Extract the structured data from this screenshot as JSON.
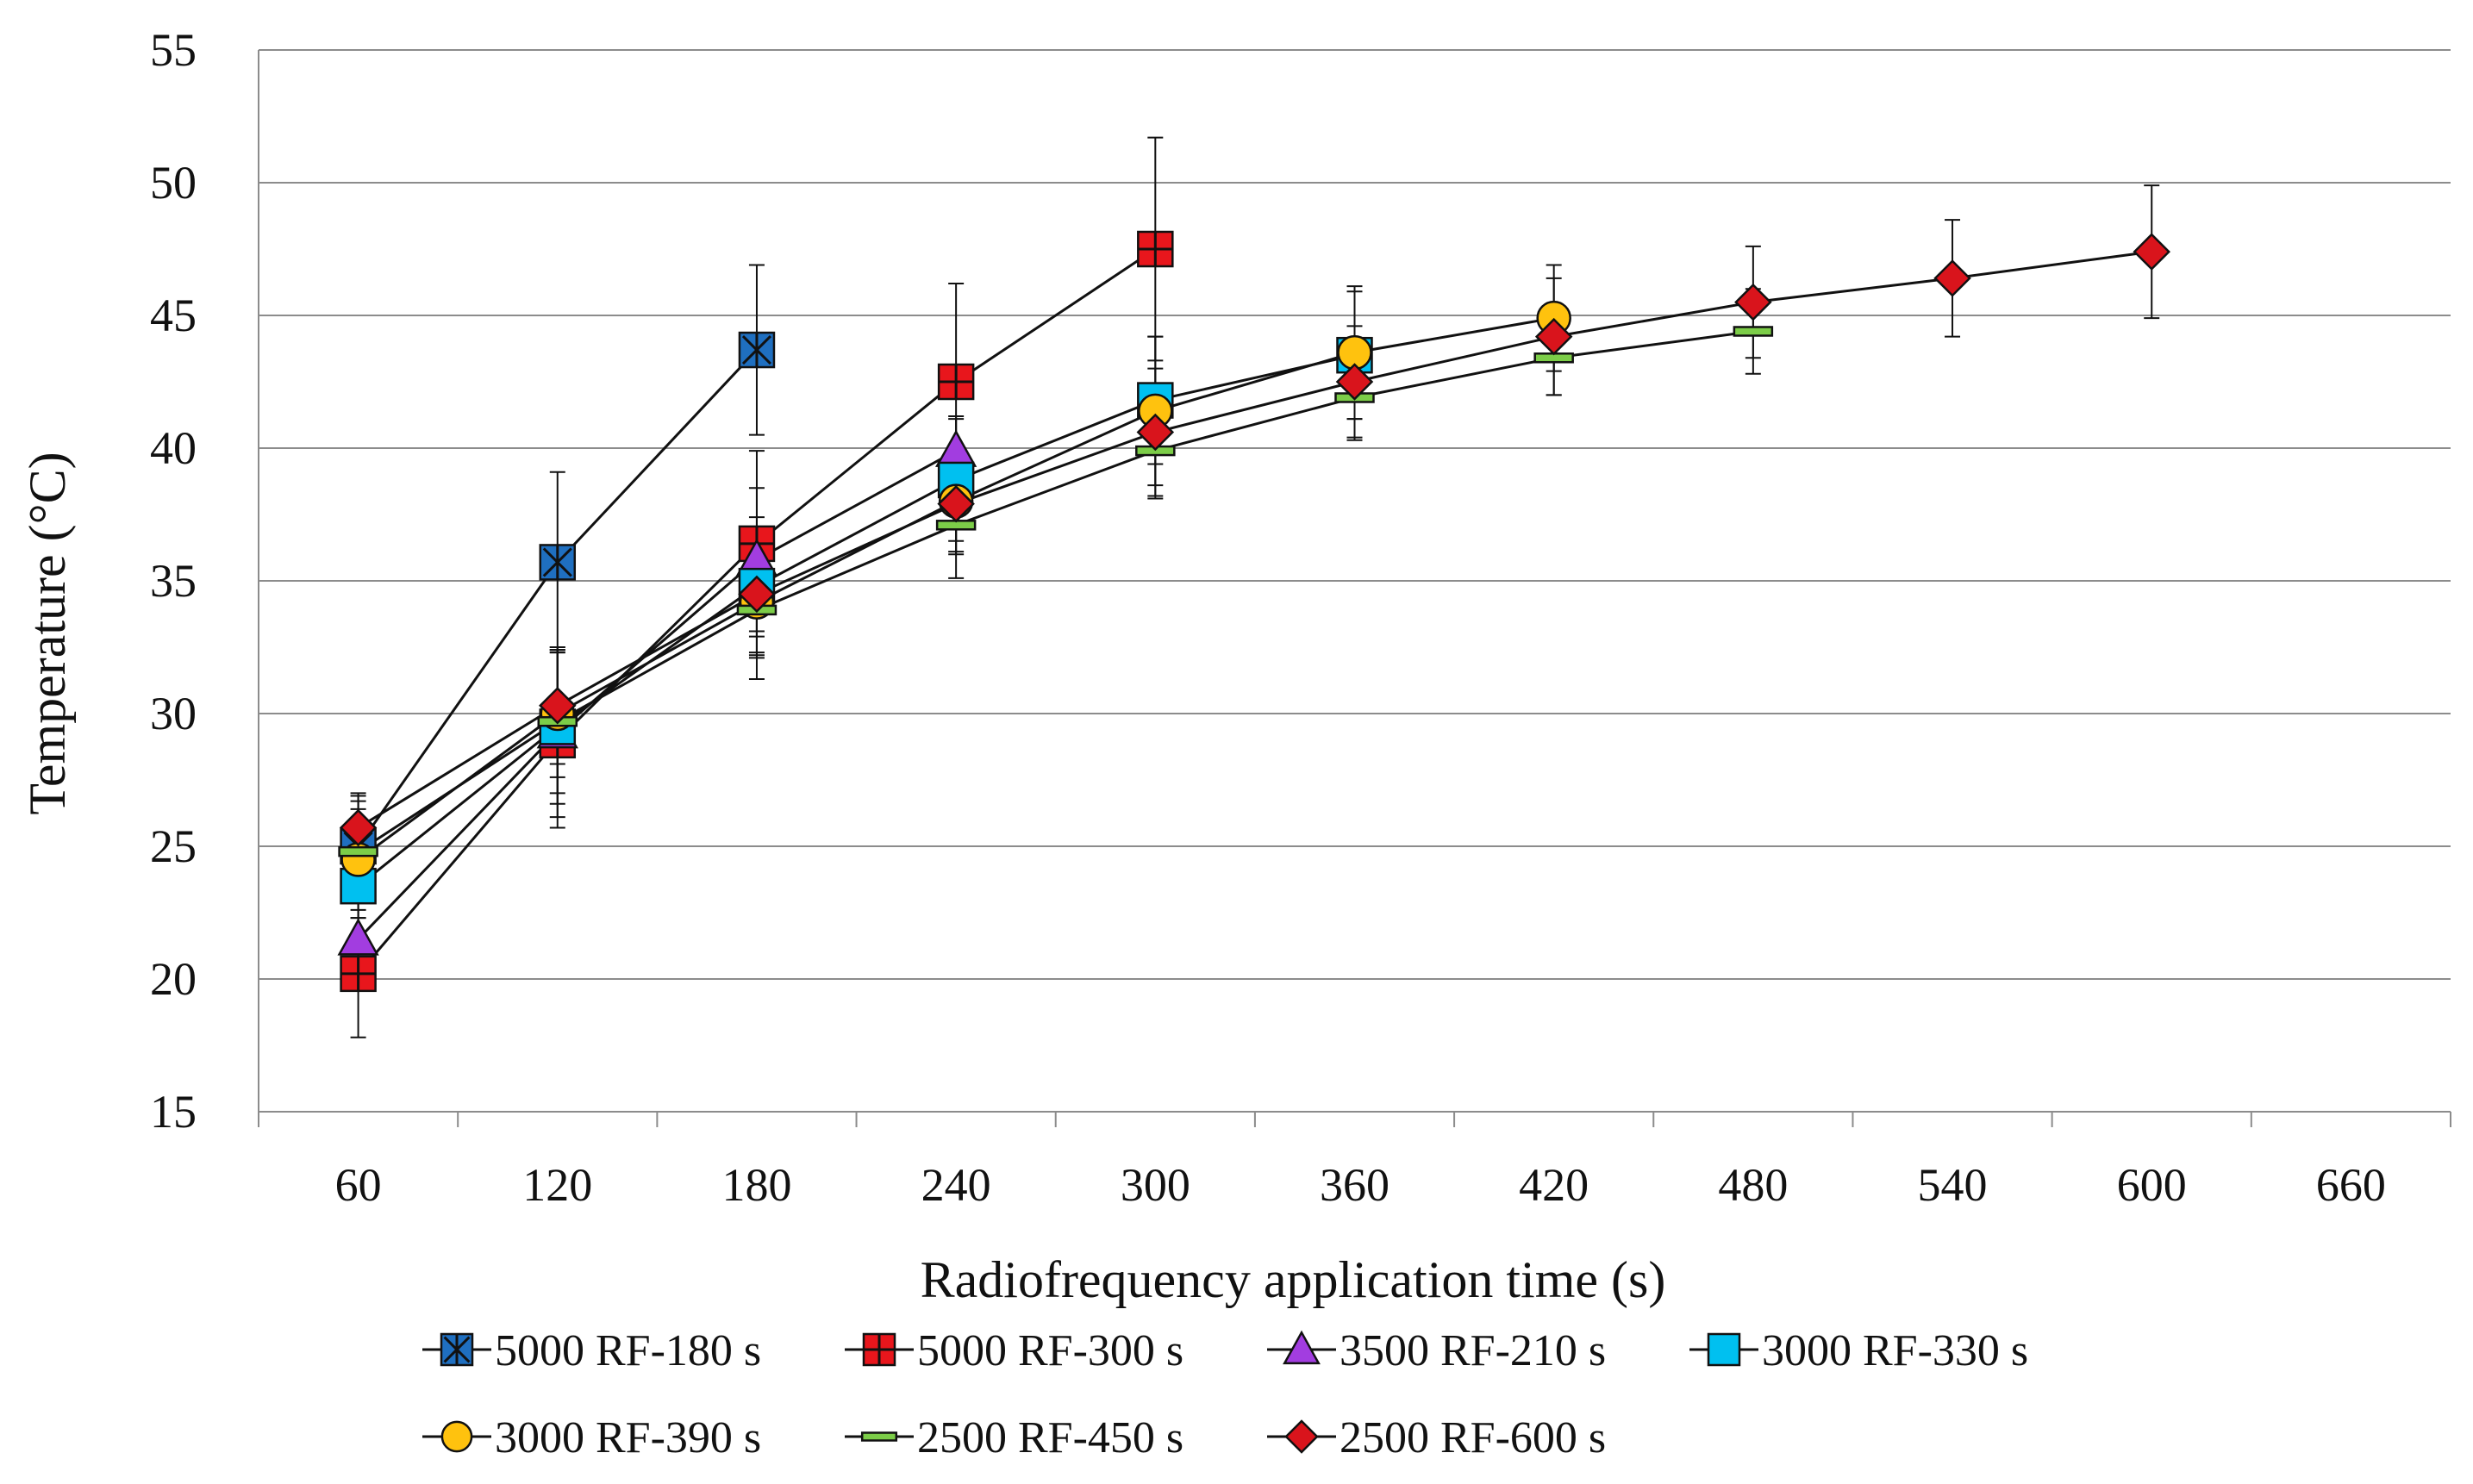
{
  "chart_data": {
    "type": "line",
    "title": "",
    "xlabel": "Radiofrequency application time (s)",
    "ylabel": "Temperature (°C)",
    "x_ticks": [
      60,
      120,
      180,
      240,
      300,
      360,
      420,
      480,
      540,
      600,
      660
    ],
    "y_ticks": [
      15,
      20,
      25,
      30,
      35,
      40,
      45,
      50,
      55
    ],
    "ylim": [
      15,
      55
    ],
    "grid": "horizontal",
    "legend_position": "bottom",
    "series": [
      {
        "name": "5000 RF-180 s",
        "marker": "square-star",
        "color": "#1f6fc0",
        "x": [
          60,
          120,
          180
        ],
        "y": [
          25.0,
          35.7,
          43.7
        ],
        "err": [
          2.0,
          3.4,
          3.2
        ]
      },
      {
        "name": "5000 RF-300 s",
        "marker": "square-plus",
        "color": "#e8161c",
        "x": [
          60,
          120,
          180,
          240,
          300
        ],
        "y": [
          20.2,
          29.0,
          36.4,
          42.5,
          47.5
        ],
        "err": [
          2.4,
          3.3,
          3.5,
          3.7,
          4.2
        ]
      },
      {
        "name": "3500 RF-210 s",
        "marker": "triangle",
        "color": "#a23de0",
        "x": [
          60,
          120,
          180,
          240
        ],
        "y": [
          21.5,
          29.3,
          35.8,
          39.9
        ],
        "err": [
          1.5,
          3.2,
          2.7,
          1.3
        ]
      },
      {
        "name": "3000 RF-330 s",
        "marker": "square",
        "color": "#00c0f0",
        "x": [
          60,
          120,
          180,
          240,
          300,
          360
        ],
        "y": [
          23.5,
          29.5,
          34.8,
          38.8,
          41.8,
          43.5
        ],
        "err": [
          1.2,
          2.9,
          2.6,
          2.3,
          2.4,
          2.4
        ]
      },
      {
        "name": "3000 RF-390 s",
        "marker": "circle",
        "color": "#ffc20e",
        "x": [
          60,
          120,
          180,
          240,
          300,
          360,
          420
        ],
        "y": [
          24.5,
          30.0,
          34.2,
          38.0,
          41.4,
          43.6,
          44.9
        ],
        "err": [
          2.2,
          2.4,
          2.1,
          1.9,
          2.8,
          2.5,
          2.0
        ]
      },
      {
        "name": "2500 RF-450 s",
        "marker": "dash",
        "color": "#7ccd48",
        "x": [
          60,
          120,
          180,
          240,
          300,
          360,
          420,
          480
        ],
        "y": [
          24.8,
          29.7,
          33.9,
          37.1,
          39.9,
          41.9,
          43.4,
          44.4
        ],
        "err": [
          1.6,
          2.7,
          2.6,
          2.0,
          1.8,
          1.6,
          1.4,
          1.6
        ]
      },
      {
        "name": "2500 RF-600 s",
        "marker": "diamond",
        "color": "#d9141c",
        "x": [
          60,
          120,
          180,
          240,
          300,
          360,
          420,
          480,
          540,
          600
        ],
        "y": [
          25.7,
          30.3,
          34.5,
          37.9,
          40.6,
          42.5,
          44.2,
          45.5,
          46.4,
          47.4
        ],
        "err": [
          1.2,
          2.2,
          2.2,
          1.9,
          2.4,
          2.1,
          2.2,
          2.1,
          2.2,
          2.5
        ]
      }
    ]
  }
}
